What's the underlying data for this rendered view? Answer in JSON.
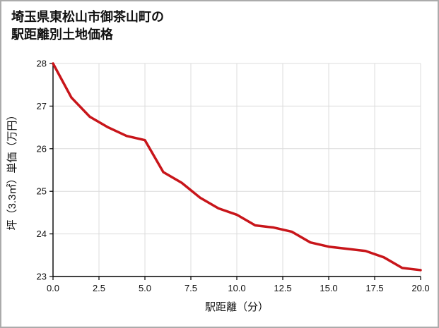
{
  "title": {
    "line1": "埼玉県東松山市御茶山町の",
    "line2": "駅距離別土地価格"
  },
  "chart_data": {
    "type": "line",
    "title": "埼玉県東松山市御茶山町の駅距離別土地価格",
    "xlabel": "駅距離（分）",
    "ylabel": "坪（3.3㎡）単価（万円）",
    "x": [
      0,
      1,
      2,
      3,
      4,
      5,
      6,
      7,
      8,
      9,
      10,
      11,
      12,
      13,
      14,
      15,
      16,
      17,
      18,
      19,
      20
    ],
    "y": [
      28.0,
      27.2,
      26.75,
      26.5,
      26.3,
      26.2,
      25.45,
      25.2,
      24.85,
      24.6,
      24.45,
      24.2,
      24.15,
      24.05,
      23.8,
      23.7,
      23.65,
      23.6,
      23.45,
      23.2,
      23.15
    ],
    "xlim": [
      0,
      20
    ],
    "ylim": [
      23,
      28
    ],
    "x_ticks": [
      0,
      2.5,
      5,
      7.5,
      10,
      12.5,
      15,
      17.5,
      20
    ],
    "x_tick_labels": [
      "0.0",
      "2.5",
      "5.0",
      "7.5",
      "10.0",
      "12.5",
      "15.0",
      "17.5",
      "20.0"
    ],
    "y_ticks": [
      23,
      24,
      25,
      26,
      27,
      28
    ],
    "y_tick_labels": [
      "23",
      "24",
      "25",
      "26",
      "27",
      "28"
    ],
    "grid": true,
    "legend": "none",
    "line_color": "#c8151a",
    "grid_color": "#dcdcdc",
    "axis_color": "#000000",
    "text_color": "#111111"
  }
}
